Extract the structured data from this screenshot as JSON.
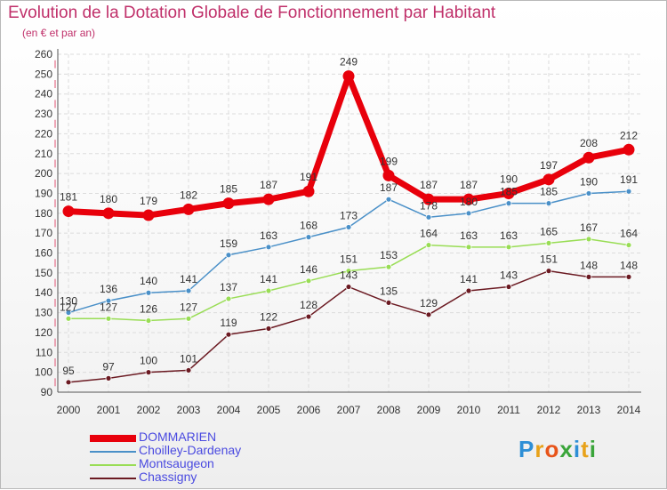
{
  "header": {
    "title": "Evolution de la Dotation Globale de Fonctionnement par Habitant",
    "subtitle": "(en € et par an)"
  },
  "colors": {
    "title": "#c0306a",
    "axis_label": "#7a0f3f",
    "tick_label": "#333333",
    "legend_text": "#4a4ae0"
  },
  "chart_data": {
    "type": "line",
    "title": "Evolution de la Dotation Globale de Fonctionnement par Habitant",
    "subtitle": "(en € et par an)",
    "xlabel": "",
    "ylabel": "",
    "ylim": [
      90,
      260
    ],
    "ytick_step": 10,
    "grid": true,
    "legend_position": "bottom-left",
    "categories": [
      "2000",
      "2001",
      "2002",
      "2003",
      "2004",
      "2005",
      "2006",
      "2007",
      "2008",
      "2009",
      "2010",
      "2011",
      "2012",
      "2013",
      "2014"
    ],
    "series": [
      {
        "name": "DOMMARIEN",
        "color": "#e8000b",
        "emphasis": true,
        "values": [
          181,
          180,
          179,
          182,
          185,
          187,
          191,
          249,
          199,
          187,
          187,
          190,
          197,
          208,
          212
        ],
        "labels": [
          "181",
          "180",
          "179",
          "182",
          "185",
          "187",
          "191",
          "249",
          "199",
          "187",
          "187",
          "190",
          "197",
          "208",
          "212"
        ]
      },
      {
        "name": "Choilley-Dardenay",
        "color": "#4a90c8",
        "emphasis": false,
        "values": [
          130,
          136,
          140,
          141,
          159,
          163,
          168,
          173,
          187,
          178,
          180,
          185,
          185,
          190,
          191
        ],
        "labels": [
          "130",
          "136",
          "140",
          "141",
          "159",
          "163",
          "168",
          "173",
          "187",
          "178",
          "180",
          "185",
          "185",
          "190",
          "191"
        ]
      },
      {
        "name": "Montsaugeon",
        "color": "#99dd55",
        "emphasis": false,
        "values": [
          127,
          127,
          126,
          127,
          137,
          141,
          146,
          151,
          153,
          164,
          163,
          163,
          165,
          167,
          164
        ],
        "labels": [
          "127",
          "127",
          "126",
          "127",
          "137",
          "141",
          "146",
          "151",
          "153",
          "164",
          "163",
          "163",
          "165",
          "167",
          "164"
        ]
      },
      {
        "name": "Chassigny",
        "color": "#6b1a22",
        "emphasis": false,
        "values": [
          95,
          97,
          100,
          101,
          119,
          122,
          128,
          143,
          135,
          129,
          141,
          143,
          151,
          148,
          148
        ],
        "labels": [
          "95",
          "97",
          "100",
          "101",
          "119",
          "122",
          "128",
          "143",
          "135",
          "129",
          "141",
          "143",
          "151",
          "148",
          "148"
        ]
      }
    ]
  },
  "brand": {
    "logo_text": "Proxiti",
    "letters": [
      "P",
      "r",
      "o",
      "x",
      "i",
      "t",
      "i"
    ],
    "letter_colors": [
      "#2e8fd6",
      "#e8a21a",
      "#e8541a",
      "#3aa53a",
      "#2e8fd6",
      "#e8a21a",
      "#3aa53a"
    ]
  }
}
